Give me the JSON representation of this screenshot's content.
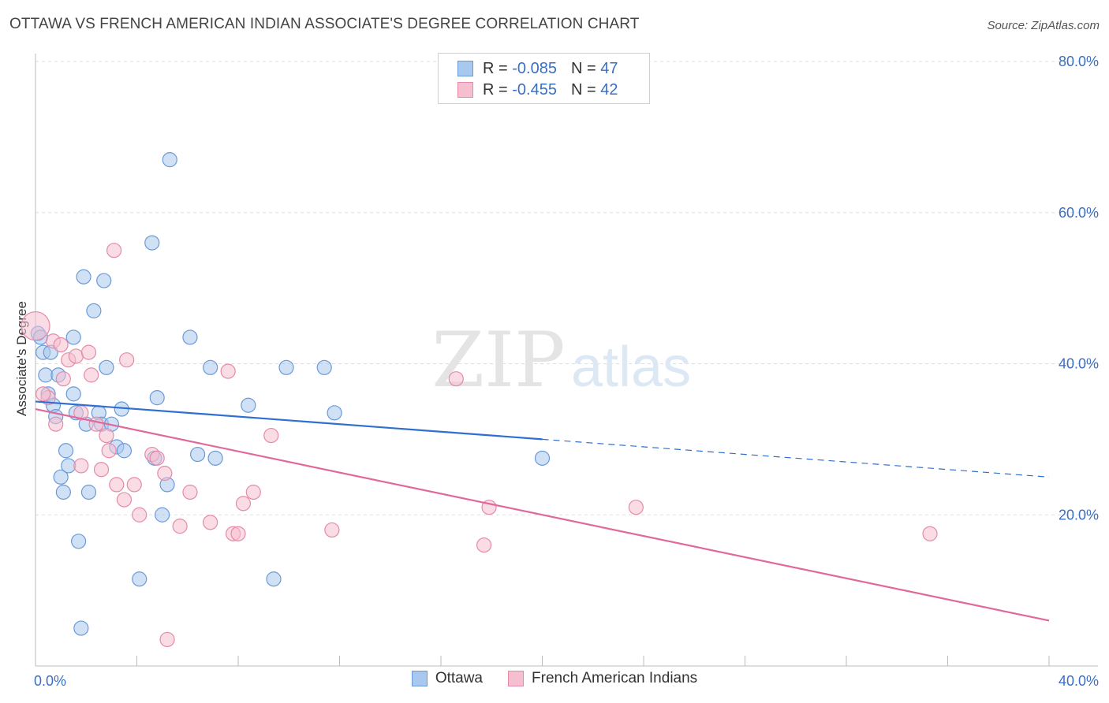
{
  "title": "OTTAWA VS FRENCH AMERICAN INDIAN ASSOCIATE'S DEGREE CORRELATION CHART",
  "source": "Source: ZipAtlas.com",
  "watermark": {
    "zip": "ZIP",
    "atlas": "atlas"
  },
  "legend": {
    "rows": [
      {
        "r_label": "R =",
        "r_value": "-0.085",
        "n_label": "N =",
        "n_value": "47",
        "color": "#a9c8ef",
        "border": "#6a9ad8"
      },
      {
        "r_label": "R =",
        "r_value": "-0.455",
        "n_label": "N =",
        "n_value": "42",
        "color": "#f6bfd0",
        "border": "#e58aa8"
      }
    ]
  },
  "chart_data": {
    "type": "scatter",
    "title": "OTTAWA VS FRENCH AMERICAN INDIAN ASSOCIATE'S DEGREE CORRELATION CHART",
    "xlabel": "",
    "ylabel": "Associate's Degree",
    "xlim": [
      0,
      40
    ],
    "ylim": [
      0,
      80
    ],
    "x_tick_labels": [
      {
        "value": 0,
        "label": "0.0%"
      },
      {
        "value": 40,
        "label": "40.0%"
      }
    ],
    "y_tick_labels": [
      {
        "value": 20,
        "label": "20.0%"
      },
      {
        "value": 40,
        "label": "40.0%"
      },
      {
        "value": 60,
        "label": "60.0%"
      },
      {
        "value": 80,
        "label": "80.0%"
      }
    ],
    "series": [
      {
        "name": "Ottawa",
        "color": "#a9c8ef",
        "edge": "#6a9ad8",
        "line_color": "#2e6fd0",
        "trend": {
          "x0": 0,
          "y0": 35.0,
          "x1": 20,
          "y1": 30.0,
          "x_dash_end": 40,
          "y_dash_end": 25.0
        },
        "points": [
          [
            0.1,
            44.0
          ],
          [
            0.3,
            41.5
          ],
          [
            0.4,
            38.5
          ],
          [
            0.5,
            36.0
          ],
          [
            0.7,
            34.5
          ],
          [
            0.8,
            33.0
          ],
          [
            0.9,
            38.5
          ],
          [
            1.0,
            25.0
          ],
          [
            1.1,
            23.0
          ],
          [
            1.2,
            28.5
          ],
          [
            1.3,
            26.5
          ],
          [
            1.5,
            43.5
          ],
          [
            1.5,
            36.0
          ],
          [
            1.6,
            33.5
          ],
          [
            1.7,
            16.5
          ],
          [
            1.8,
            5.0
          ],
          [
            1.9,
            51.5
          ],
          [
            2.0,
            32.0
          ],
          [
            2.1,
            23.0
          ],
          [
            2.3,
            47.0
          ],
          [
            2.5,
            33.5
          ],
          [
            2.6,
            32.0
          ],
          [
            2.7,
            51.0
          ],
          [
            2.8,
            39.5
          ],
          [
            3.0,
            32.0
          ],
          [
            3.2,
            29.0
          ],
          [
            3.4,
            34.0
          ],
          [
            3.5,
            28.5
          ],
          [
            4.1,
            11.5
          ],
          [
            4.6,
            56.0
          ],
          [
            4.7,
            27.5
          ],
          [
            4.8,
            35.5
          ],
          [
            5.0,
            20.0
          ],
          [
            5.2,
            24.0
          ],
          [
            5.3,
            67.0
          ],
          [
            6.1,
            43.5
          ],
          [
            6.4,
            28.0
          ],
          [
            6.9,
            39.5
          ],
          [
            7.1,
            27.5
          ],
          [
            8.4,
            34.5
          ],
          [
            9.4,
            11.5
          ],
          [
            9.9,
            39.5
          ],
          [
            11.4,
            39.5
          ],
          [
            11.8,
            33.5
          ],
          [
            20.0,
            27.5
          ],
          [
            0.2,
            43.5
          ],
          [
            0.6,
            41.5
          ]
        ]
      },
      {
        "name": "French American Indians",
        "color": "#f6bfd0",
        "edge": "#e58aa8",
        "line_color": "#e0689a",
        "trend": {
          "x0": 0,
          "y0": 34.0,
          "x1": 40,
          "y1": 6.0
        },
        "points": [
          [
            0.0,
            45.0
          ],
          [
            0.5,
            35.5
          ],
          [
            0.7,
            43.0
          ],
          [
            0.8,
            32.0
          ],
          [
            1.0,
            42.5
          ],
          [
            1.1,
            38.0
          ],
          [
            1.3,
            40.5
          ],
          [
            1.6,
            41.0
          ],
          [
            1.8,
            33.5
          ],
          [
            1.8,
            26.5
          ],
          [
            2.1,
            41.5
          ],
          [
            2.2,
            38.5
          ],
          [
            2.4,
            32.0
          ],
          [
            2.6,
            26.0
          ],
          [
            2.8,
            30.5
          ],
          [
            2.9,
            28.5
          ],
          [
            3.1,
            55.0
          ],
          [
            3.2,
            24.0
          ],
          [
            3.5,
            22.0
          ],
          [
            3.6,
            40.5
          ],
          [
            3.9,
            24.0
          ],
          [
            4.1,
            20.0
          ],
          [
            4.6,
            28.0
          ],
          [
            4.8,
            27.5
          ],
          [
            5.1,
            25.5
          ],
          [
            5.2,
            3.5
          ],
          [
            5.7,
            18.5
          ],
          [
            6.1,
            23.0
          ],
          [
            6.9,
            19.0
          ],
          [
            7.6,
            39.0
          ],
          [
            7.8,
            17.5
          ],
          [
            8.0,
            17.5
          ],
          [
            8.2,
            21.5
          ],
          [
            8.6,
            23.0
          ],
          [
            9.3,
            30.5
          ],
          [
            11.7,
            18.0
          ],
          [
            16.6,
            38.0
          ],
          [
            17.7,
            16.0
          ],
          [
            17.9,
            21.0
          ],
          [
            23.7,
            21.0
          ],
          [
            35.3,
            17.5
          ],
          [
            0.3,
            36.0
          ]
        ]
      }
    ]
  }
}
